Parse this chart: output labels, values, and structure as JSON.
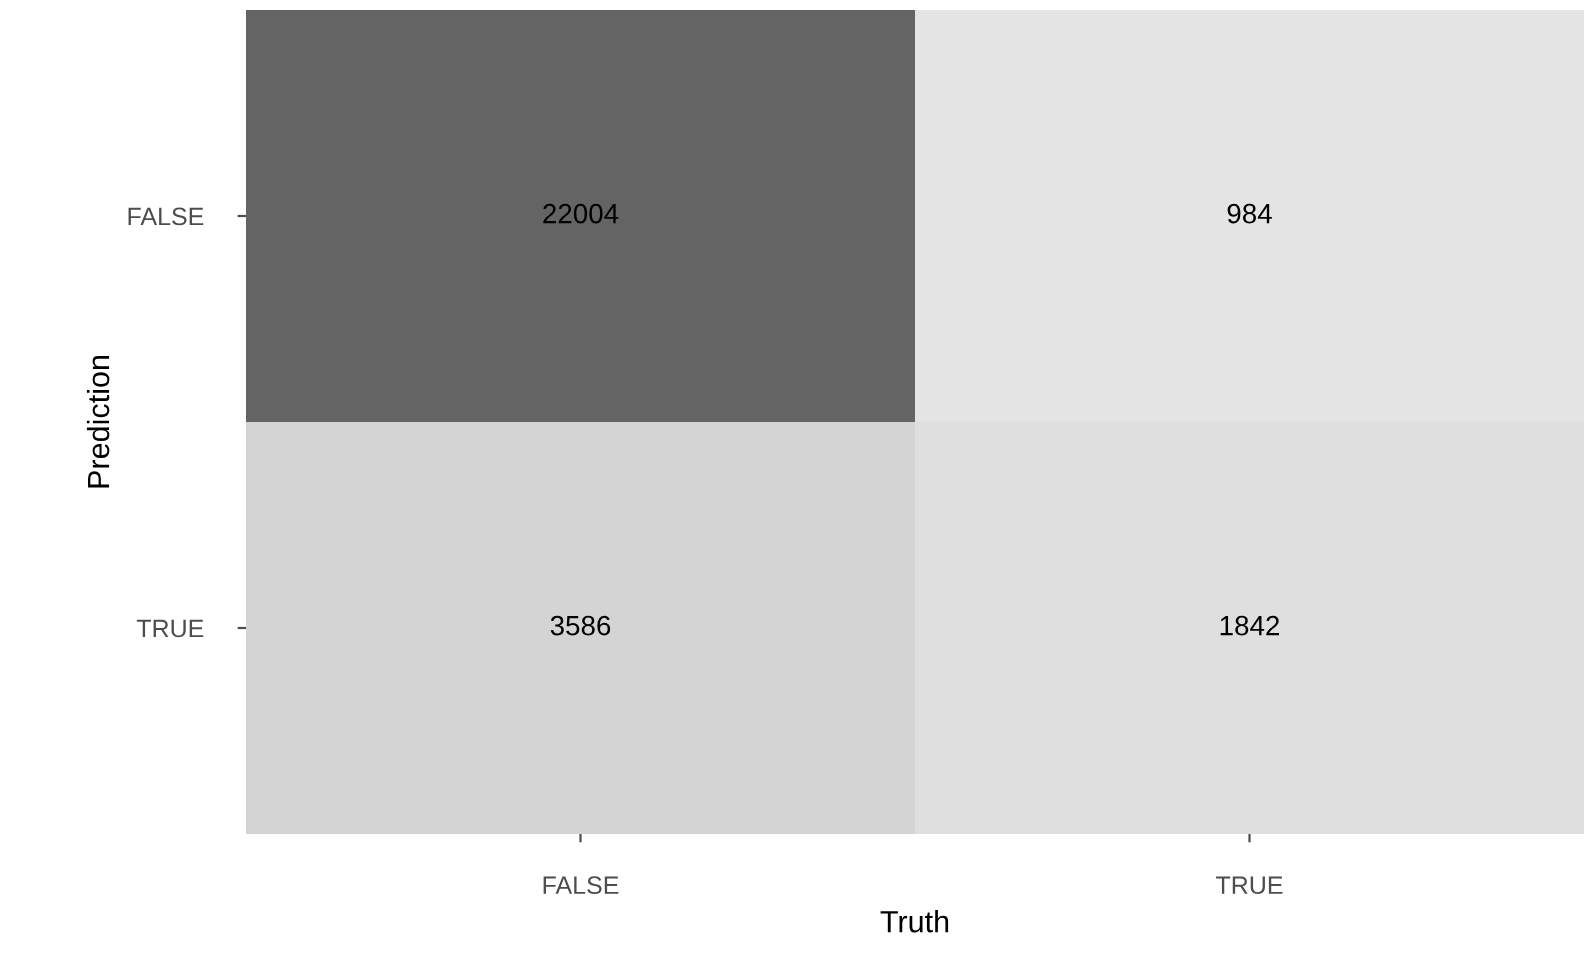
{
  "chart_data": {
    "type": "heatmap",
    "xlabel": "Truth",
    "ylabel": "Prediction",
    "categories": [
      "FALSE",
      "TRUE"
    ],
    "y_categories": [
      "FALSE",
      "TRUE"
    ],
    "cells": [
      [
        22004,
        984
      ],
      [
        3586,
        1842
      ]
    ],
    "data_labels": true,
    "grid": false
  }
}
